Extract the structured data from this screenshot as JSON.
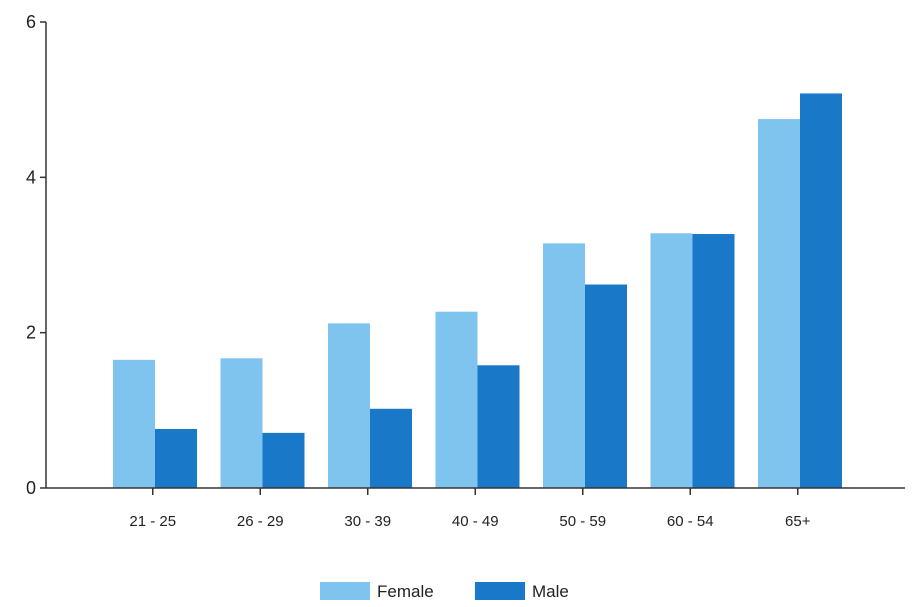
{
  "chart_data": {
    "type": "bar",
    "categories": [
      "21 - 25",
      "26 - 29",
      "30 - 39",
      "40 - 49",
      "50 - 59",
      "60 - 54",
      "65+"
    ],
    "series": [
      {
        "name": "Female",
        "values": [
          1.65,
          1.67,
          2.12,
          2.27,
          3.15,
          3.28,
          4.75
        ]
      },
      {
        "name": "Male",
        "values": [
          0.76,
          0.71,
          1.02,
          1.58,
          2.62,
          3.27,
          5.08
        ]
      }
    ],
    "y_ticks": [
      "0",
      "2",
      "4",
      "6"
    ],
    "ylim": [
      0,
      6
    ],
    "grid": false,
    "legend": "bottom-center",
    "title": "",
    "xlabel": "",
    "ylabel": ""
  },
  "colors": {
    "female": "#7fc4ef",
    "male": "#1a78c8",
    "axis": "#333333"
  }
}
